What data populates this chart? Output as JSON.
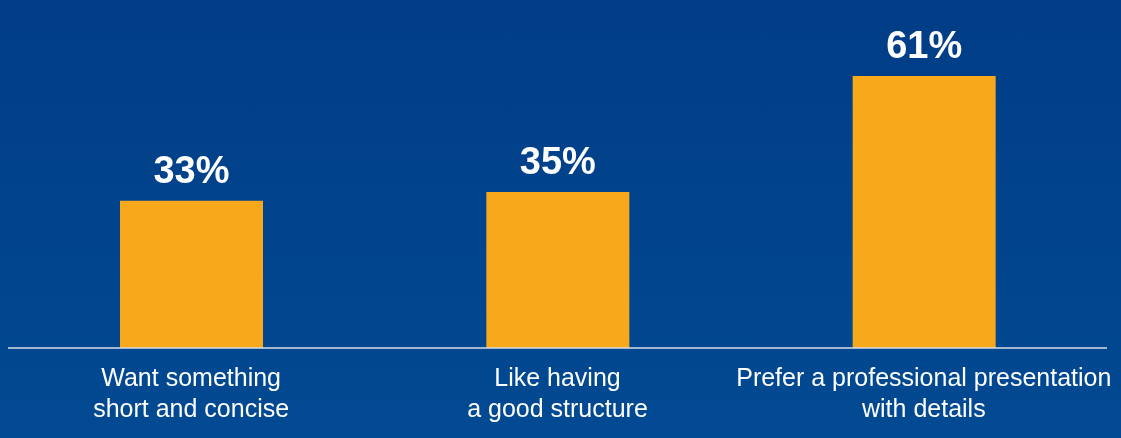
{
  "chart_data": {
    "type": "bar",
    "categories": [
      "Want something\nshort and concise",
      "Like having\na good structure",
      "Prefer a professional presentation\nwith details"
    ],
    "values": [
      33,
      35,
      61
    ],
    "value_labels": [
      "33%",
      "35%",
      "61%"
    ],
    "color": "#f7a81b"
  }
}
